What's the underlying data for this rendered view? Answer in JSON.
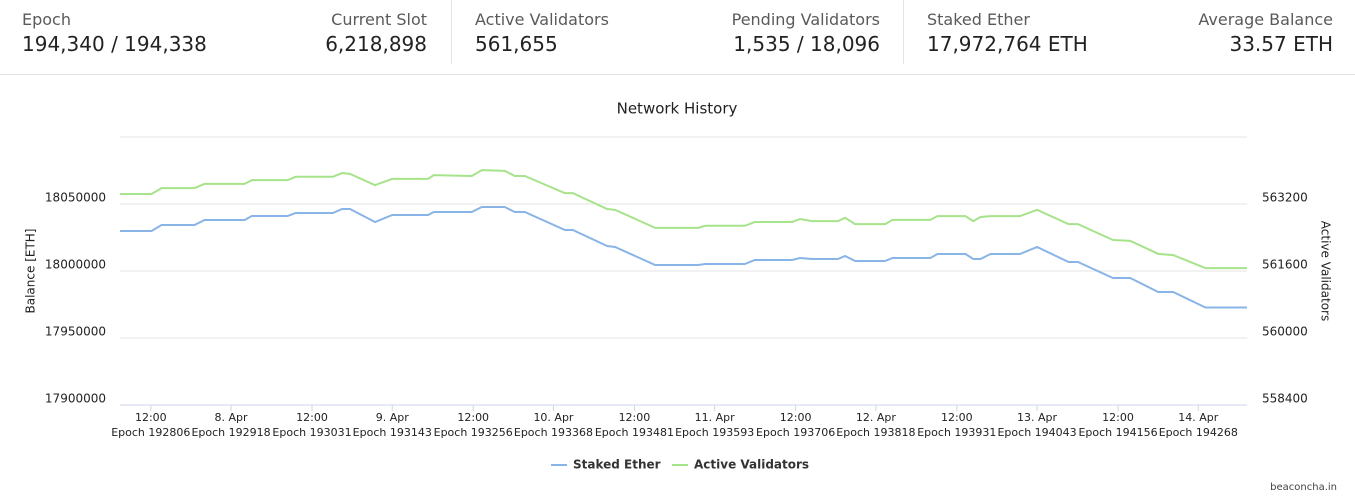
{
  "stats": [
    {
      "label": "Epoch",
      "value": "194,340 / 194,338"
    },
    {
      "label": "Current Slot",
      "value": "6,218,898"
    },
    {
      "label": "Active Validators",
      "value": "561,655"
    },
    {
      "label": "Pending Validators",
      "value": "1,535 / 18,096"
    },
    {
      "label": "Staked Ether",
      "value": "17,972,764 ETH"
    },
    {
      "label": "Average Balance",
      "value": "33.57 ETH"
    }
  ],
  "chart_data": {
    "type": "line",
    "title": "Network History",
    "ylabel": "Balance [ETH]",
    "y2label": "Active Validators",
    "x": [
      192763,
      192807,
      192821,
      192867,
      192881,
      192937,
      192947,
      192997,
      193008,
      193060,
      193073,
      193084,
      193119,
      193143,
      193193,
      193201,
      193254,
      193268,
      193300,
      193314,
      193328,
      193384,
      193395,
      193443,
      193454,
      193510,
      193570,
      193580,
      193635,
      193649,
      193701,
      193712,
      193729,
      193765,
      193775,
      193789,
      193831,
      193841,
      193894,
      193904,
      193943,
      193954,
      193964,
      193978,
      194019,
      194043,
      194087,
      194100,
      194149,
      194173,
      194212,
      194233,
      194278,
      194336
    ],
    "xlim": [
      192763,
      194336
    ],
    "xticks": [
      {
        "value": 192806,
        "label": "12:00",
        "sublabel": "Epoch 192806"
      },
      {
        "value": 192918,
        "label": "8. Apr",
        "sublabel": "Epoch 192918"
      },
      {
        "value": 193031,
        "label": "12:00",
        "sublabel": "Epoch 193031"
      },
      {
        "value": 193143,
        "label": "9. Apr",
        "sublabel": "Epoch 193143"
      },
      {
        "value": 193256,
        "label": "12:00",
        "sublabel": "Epoch 193256"
      },
      {
        "value": 193368,
        "label": "10. Apr",
        "sublabel": "Epoch 193368"
      },
      {
        "value": 193481,
        "label": "12:00",
        "sublabel": "Epoch 193481"
      },
      {
        "value": 193593,
        "label": "11. Apr",
        "sublabel": "Epoch 193593"
      },
      {
        "value": 193706,
        "label": "12:00",
        "sublabel": "Epoch 193706"
      },
      {
        "value": 193818,
        "label": "12. Apr",
        "sublabel": "Epoch 193818"
      },
      {
        "value": 193931,
        "label": "12:00",
        "sublabel": "Epoch 193931"
      },
      {
        "value": 194043,
        "label": "13. Apr",
        "sublabel": "Epoch 194043"
      },
      {
        "value": 194156,
        "label": "12:00",
        "sublabel": "Epoch 194156"
      },
      {
        "value": 194268,
        "label": "14. Apr",
        "sublabel": "Epoch 194268"
      }
    ],
    "ylim": [
      17900000,
      18100000
    ],
    "yticks": [
      17900000,
      17950000,
      18000000,
      18050000
    ],
    "y2lim": [
      558400,
      564800
    ],
    "y2ticks": [
      558400,
      560000,
      561600,
      563200
    ],
    "grid": true,
    "legend": "bottom",
    "series": [
      {
        "name": "Staked Ether",
        "color": "#88b4e7",
        "values": [
          18029850,
          18029850,
          18034330,
          18034330,
          18038060,
          18038060,
          18041040,
          18041040,
          18043280,
          18043280,
          18046270,
          18046270,
          18036570,
          18041790,
          18041790,
          18044030,
          18044030,
          18047760,
          18047760,
          18044030,
          18044030,
          18030600,
          18030600,
          18018650,
          18017910,
          18004480,
          18004480,
          18005220,
          18005220,
          18008210,
          18008210,
          18009700,
          18008960,
          18008960,
          18011190,
          18007460,
          18007460,
          18009700,
          18009700,
          18012690,
          18012690,
          18008960,
          18008960,
          18012690,
          18012690,
          18017910,
          18006720,
          18006720,
          17994780,
          17994780,
          17984330,
          17984330,
          17972760,
          17972760
        ]
      },
      {
        "name": "Active Validators",
        "color": "#a6e38a",
        "axis": "y2",
        "values": [
          563440,
          563440,
          563580,
          563580,
          563680,
          563680,
          563770,
          563770,
          563850,
          563850,
          563940,
          563920,
          563650,
          563800,
          563800,
          563890,
          563870,
          564010,
          563990,
          563870,
          563870,
          563460,
          563460,
          563080,
          563060,
          562630,
          562630,
          562680,
          562680,
          562770,
          562770,
          562840,
          562790,
          562790,
          562870,
          562720,
          562720,
          562820,
          562820,
          562910,
          562910,
          562790,
          562890,
          562910,
          562910,
          563060,
          562720,
          562720,
          562340,
          562320,
          562010,
          561980,
          561670,
          561670
        ]
      }
    ]
  },
  "footer": "beaconcha.in"
}
